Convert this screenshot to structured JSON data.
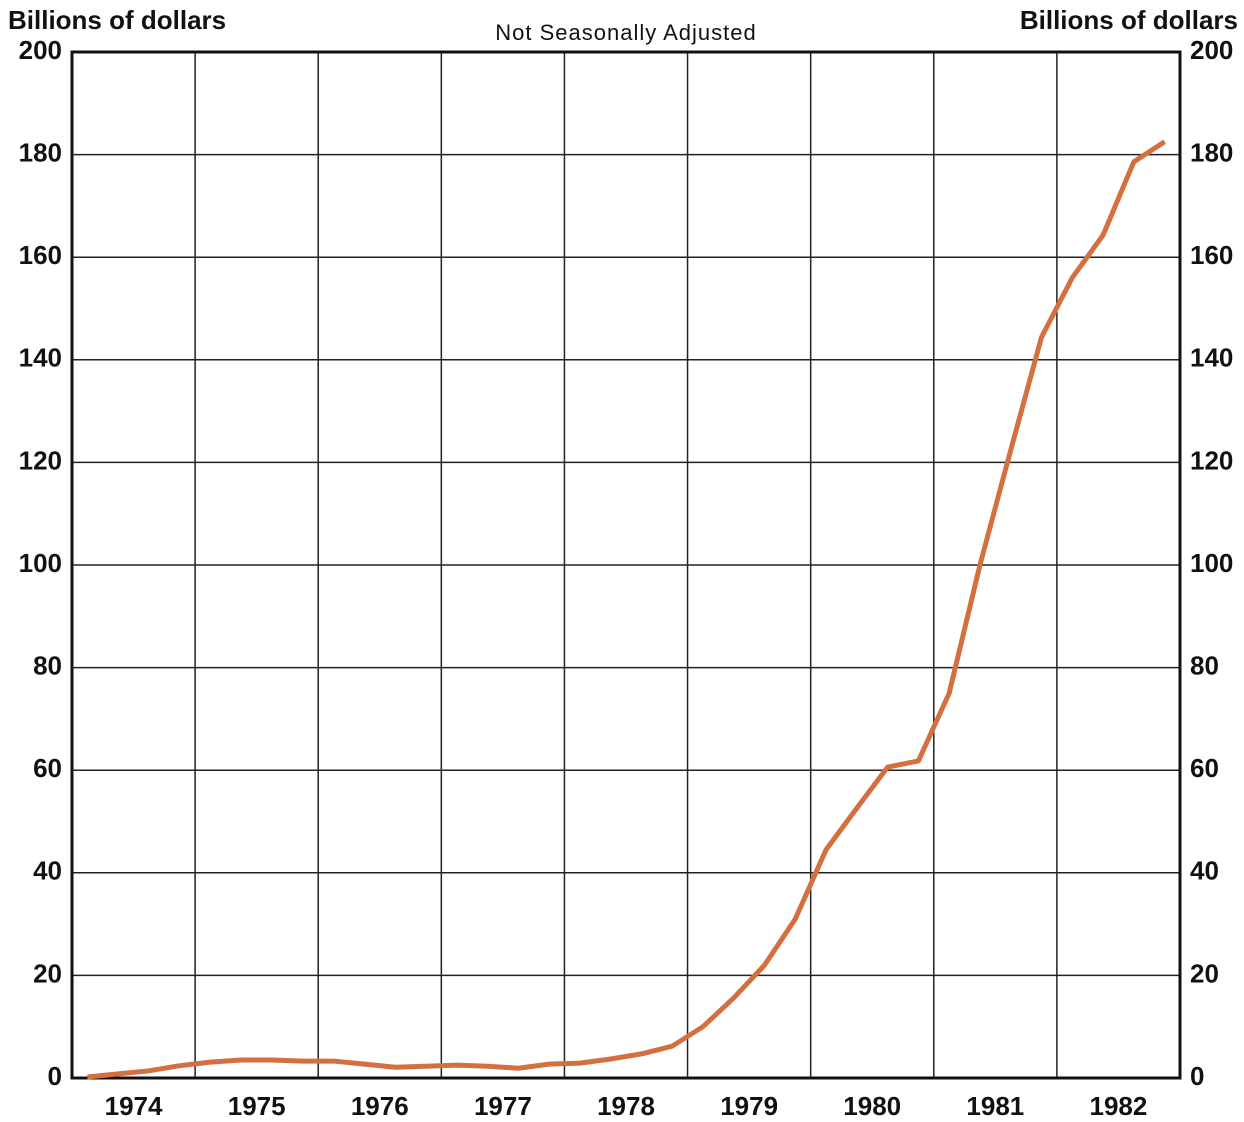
{
  "chart_data": {
    "type": "line",
    "y_label": "Billions of dollars",
    "y2_label": "Billions of dollars",
    "subtitle": "Not Seasonally Adjusted",
    "x": [
      1974.125,
      1974.375,
      1974.625,
      1974.875,
      1975.125,
      1975.375,
      1975.625,
      1975.875,
      1976.125,
      1976.375,
      1976.625,
      1976.875,
      1977.125,
      1977.375,
      1977.625,
      1977.875,
      1978.125,
      1978.375,
      1978.625,
      1978.875,
      1979.125,
      1979.375,
      1979.625,
      1979.875,
      1980.125,
      1980.375,
      1980.625,
      1980.875,
      1981.125,
      1981.375,
      1981.625,
      1981.875,
      1982.125,
      1982.375,
      1982.625,
      1982.875
    ],
    "series": [
      {
        "color": "#d4703f",
        "values": [
          0.2,
          0.8,
          1.4,
          2.4,
          3.1,
          3.5,
          3.5,
          3.3,
          3.3,
          2.7,
          2.1,
          2.3,
          2.5,
          2.3,
          1.9,
          2.7,
          2.9,
          3.7,
          4.7,
          6.2,
          10,
          15.6,
          22,
          31,
          44.5,
          52.6,
          60.6,
          61.8,
          75,
          100,
          122.4,
          144.4,
          156,
          164.3,
          178.6,
          182.5
        ]
      }
    ],
    "xlim": [
      1974,
      1983
    ],
    "xticks": [
      {
        "value": 1974.5,
        "label": "1974"
      },
      {
        "value": 1975.5,
        "label": "1975"
      },
      {
        "value": 1976.5,
        "label": "1976"
      },
      {
        "value": 1977.5,
        "label": "1977"
      },
      {
        "value": 1978.5,
        "label": "1978"
      },
      {
        "value": 1979.5,
        "label": "1979"
      },
      {
        "value": 1980.5,
        "label": "1980"
      },
      {
        "value": 1981.5,
        "label": "1981"
      },
      {
        "value": 1982.5,
        "label": "1982"
      }
    ],
    "x_gridlines": [
      1974,
      1975,
      1976,
      1977,
      1978,
      1979,
      1980,
      1981,
      1982,
      1983
    ],
    "ylim": [
      0,
      200
    ],
    "yticks": [
      0,
      20,
      40,
      60,
      80,
      100,
      120,
      140,
      160,
      180,
      200
    ],
    "y2lim": [
      0,
      200
    ],
    "y2ticks": [
      0,
      20,
      40,
      60,
      80,
      100,
      120,
      140,
      160,
      180,
      200
    ],
    "grid": true
  }
}
